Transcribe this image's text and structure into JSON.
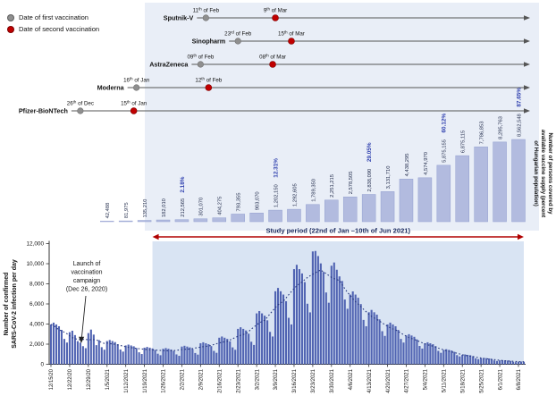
{
  "figure": {
    "legend": {
      "items": [
        {
          "label": "Date of first vaccination",
          "color": "#8f8f8f"
        },
        {
          "label": "Date of second vaccination",
          "color": "#c00000"
        }
      ]
    },
    "colors": {
      "band_bg": "#e9eef7",
      "study_bg": "#d9e4f3",
      "supply_bar": "#b2bbdf",
      "supply_bar_border": "#93a0d0",
      "supply_value_label": "#26304f",
      "percent_label": "#2e3fae",
      "epi_bar": "#5063b2",
      "trend_line": "#25367c",
      "study_arrow": "#b00000",
      "study_text": "#1a2a5e",
      "timeline_line": "#555555"
    },
    "timeline": {
      "rows": [
        {
          "name": "Sputnik-V",
          "first_date": "2021-02-11",
          "first_label": "11th of Feb",
          "second_date": "2021-03-09",
          "second_label": "9th of Mar"
        },
        {
          "name": "Sinopharm",
          "first_date": "2021-02-23",
          "first_label": "23rd of Feb",
          "second_date": "2021-03-15",
          "second_label": "15th of Mar"
        },
        {
          "name": "AstraZeneca",
          "first_date": "2021-02-09",
          "first_label": "09th of Feb",
          "second_date": "2021-03-08",
          "second_label": "08th of Mar"
        },
        {
          "name": "Moderna",
          "first_date": "2021-01-16",
          "first_label": "16th of Jan",
          "second_date": "2021-02-12",
          "second_label": "12th of Feb"
        },
        {
          "name": "Pfizer-BioNTech",
          "first_date": "2020-12-26",
          "first_label": "26th of Dec",
          "second_date": "2021-01-15",
          "second_label": "15th of Jan"
        }
      ]
    }
  },
  "chart_data": [
    {
      "type": "bar",
      "name": "vaccine-supply",
      "ylabel": "Number of persons covered by available vaccine supply (percent of Hungarian population)",
      "ylabel_lines": [
        "Number of persons covered by",
        "available vaccine supply (percent",
        "of Hungarian population)"
      ],
      "categories": [
        "2021-01-05",
        "2021-01-12",
        "2021-01-19",
        "2021-01-26",
        "2021-02-02",
        "2021-02-09",
        "2021-02-16",
        "2021-02-23",
        "2021-03-02",
        "2021-03-09",
        "2021-03-16",
        "2021-03-23",
        "2021-03-30",
        "2021-04-06",
        "2021-04-13",
        "2021-04-20",
        "2021-04-27",
        "2021-05-04",
        "2021-05-11",
        "2021-05-18",
        "2021-05-25",
        "2021-06-01",
        "2021-06-08"
      ],
      "values": [
        42488,
        81975,
        135210,
        182010,
        212565,
        301070,
        404275,
        793355,
        903070,
        1202150,
        1292605,
        1789350,
        2251215,
        2578505,
        2838090,
        3131710,
        4438295,
        4574970,
        5875155,
        6875115,
        7786853,
        8295763,
        8562548
      ],
      "percent_labels": [
        "",
        "",
        "",
        "",
        "2.18%",
        "",
        "",
        "",
        "",
        "12.31%",
        "",
        "",
        "",
        "",
        "29.05%",
        "",
        "",
        "",
        "60.12%",
        "",
        "",
        "",
        "87.65%"
      ],
      "grid": false,
      "legend_position": "none"
    },
    {
      "type": "bar",
      "name": "daily-confirmed-cases",
      "ylabel": "Number of confirmed SARS-CoV-2 infection per day",
      "ylabel_lines": [
        "Number of confirmed",
        "SARS-CoV-2 infection per day"
      ],
      "ylim": [
        0,
        12000
      ],
      "y_ticks": [
        "0",
        "2,000",
        "4,000",
        "6,000",
        "8,000",
        "10,000",
        "12,000"
      ],
      "x_start": "2020-12-15",
      "x_tick_labels": [
        "12/15/20",
        "12/22/20",
        "12/29/20",
        "1/5/2021",
        "1/12/2021",
        "1/19/2021",
        "1/26/2021",
        "2/2/2021",
        "2/9/2021",
        "2/16/2021",
        "2/23/2021",
        "3/2/2021",
        "3/9/2021",
        "3/16/2021",
        "3/23/2021",
        "3/30/2021",
        "4/6/2021",
        "4/13/2021",
        "4/20/2021",
        "4/27/2021",
        "5/4/2021",
        "5/11/2021",
        "5/18/2021",
        "5/25/2021",
        "6/1/2021",
        "6/8/2021"
      ],
      "daily_values": [
        3960,
        4140,
        3960,
        3780,
        3420,
        2520,
        2160,
        3190,
        3335,
        2900,
        2300,
        2150,
        1800,
        1600,
        3100,
        3450,
        2950,
        1900,
        2400,
        1700,
        1450,
        2310,
        2415,
        2310,
        2205,
        1995,
        1470,
        1260,
        1870,
        1955,
        1870,
        1785,
        1615,
        1190,
        1020,
        1650,
        1725,
        1650,
        1575,
        1425,
        1050,
        900,
        1540,
        1610,
        1540,
        1470,
        1330,
        980,
        840,
        1760,
        1840,
        1760,
        1680,
        1520,
        1120,
        960,
        2090,
        2185,
        2090,
        1995,
        1805,
        1330,
        1140,
        2640,
        2760,
        2640,
        2520,
        2280,
        1680,
        1440,
        3520,
        3680,
        3520,
        3360,
        3040,
        2240,
        1920,
        5060,
        5290,
        5060,
        4830,
        4370,
        3220,
        2760,
        7260,
        7590,
        7260,
        6930,
        6270,
        4620,
        3960,
        9460,
        9890,
        9460,
        9030,
        8170,
        6020,
        5160,
        11220,
        11265,
        10760,
        10030,
        9180,
        7140,
        6120,
        9800,
        10120,
        9400,
        8740,
        8280,
        6440,
        5520,
        6930,
        7245,
        6930,
        6615,
        5985,
        4410,
        3780,
        5170,
        5405,
        5170,
        4935,
        4465,
        3290,
        2820,
        3960,
        4140,
        3960,
        3780,
        3420,
        2520,
        2160,
        2860,
        2990,
        2860,
        2730,
        2470,
        1820,
        1560,
        2090,
        2185,
        2090,
        1995,
        1805,
        1330,
        1140,
        1430,
        1495,
        1430,
        1365,
        1235,
        910,
        780,
        935,
        978,
        935,
        893,
        808,
        595,
        510,
        605,
        633,
        605,
        578,
        523,
        385,
        330,
        385,
        403,
        385,
        368,
        333,
        245,
        210,
        253,
        265,
        253
      ],
      "trend_line": "7-day moving average (dotted)",
      "annotation": {
        "lines": [
          "Launch of",
          "vaccination",
          "campaign",
          "(Dec 26, 2020)"
        ],
        "points_to": "2020-12-26"
      },
      "study_period": {
        "label": "Study period (22nd of Jan –10th of Jun 2021)",
        "start": "2021-01-22",
        "end": "2021-06-10"
      },
      "grid": false,
      "legend_position": "none"
    }
  ]
}
